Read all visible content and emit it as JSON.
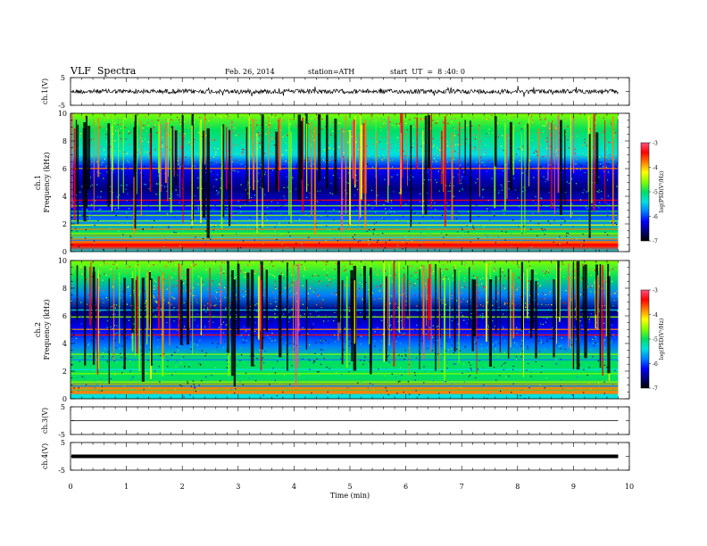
{
  "header": {
    "title": "VLF  Spectra",
    "date": "Feb. 26, 2014",
    "station": "station=ATH",
    "start": "start  UT  =  8 :40: 0"
  },
  "colors": {
    "waveform": "#000000",
    "background": "#ffffff",
    "colormap": [
      "#000000",
      "#00007a",
      "#0000ff",
      "#0080ff",
      "#00e0e0",
      "#00e060",
      "#80ff00",
      "#ffff00",
      "#ff8000",
      "#ff0000",
      "#ff5080"
    ]
  },
  "chart_data": [
    {
      "type": "line",
      "panel": "ch1-waveform",
      "ylabel": "ch.1(V)",
      "yticks": [
        "5",
        "-5"
      ],
      "ylim": [
        -5,
        5
      ],
      "xlim": [
        0,
        10
      ],
      "trace_level": 0,
      "duration": 9.8
    },
    {
      "type": "heatmap",
      "panel": "ch1-spectrogram",
      "ylabel_top": "ch.1",
      "ylabel": "Frequency  (kHz)",
      "yticks": [
        "0",
        "2",
        "4",
        "6",
        "8",
        "10"
      ],
      "ylim": [
        0,
        10
      ],
      "xlim": [
        0,
        10
      ],
      "duration": 9.8,
      "colorbar": {
        "label": "log(PSD(V²/Hz)",
        "ticks": [
          "-3",
          "-4",
          "-5",
          "-6",
          "-7"
        ],
        "range": [
          -7,
          -3
        ]
      }
    },
    {
      "type": "heatmap",
      "panel": "ch2-spectrogram",
      "ylabel_top": "ch.2",
      "ylabel": "Frequency  (kHz)",
      "yticks": [
        "0",
        "2",
        "4",
        "6",
        "8",
        "10"
      ],
      "ylim": [
        0,
        10
      ],
      "xlim": [
        0,
        10
      ],
      "duration": 9.8,
      "colorbar": {
        "label": "log(PSD(V²/Hz)",
        "ticks": [
          "-3",
          "-4",
          "-5",
          "-6",
          "-7"
        ],
        "range": [
          -7,
          -3
        ]
      }
    },
    {
      "type": "line",
      "panel": "ch3-waveform",
      "ylabel": "ch.3(V)",
      "yticks": [
        "5",
        "-5"
      ],
      "ylim": [
        -5,
        5
      ],
      "xlim": [
        0,
        10
      ],
      "trace_level": 0,
      "duration": 9.8
    },
    {
      "type": "line",
      "panel": "ch4-waveform",
      "ylabel": "ch.4(V)",
      "yticks": [
        "5",
        "-5"
      ],
      "ylim": [
        -5,
        5
      ],
      "xlim": [
        0,
        10
      ],
      "trace_level": 0,
      "duration": 9.8
    }
  ],
  "xaxis": {
    "label": "Time  (min)",
    "ticks": [
      "0",
      "1",
      "2",
      "3",
      "4",
      "5",
      "6",
      "7",
      "8",
      "9",
      "10"
    ]
  }
}
